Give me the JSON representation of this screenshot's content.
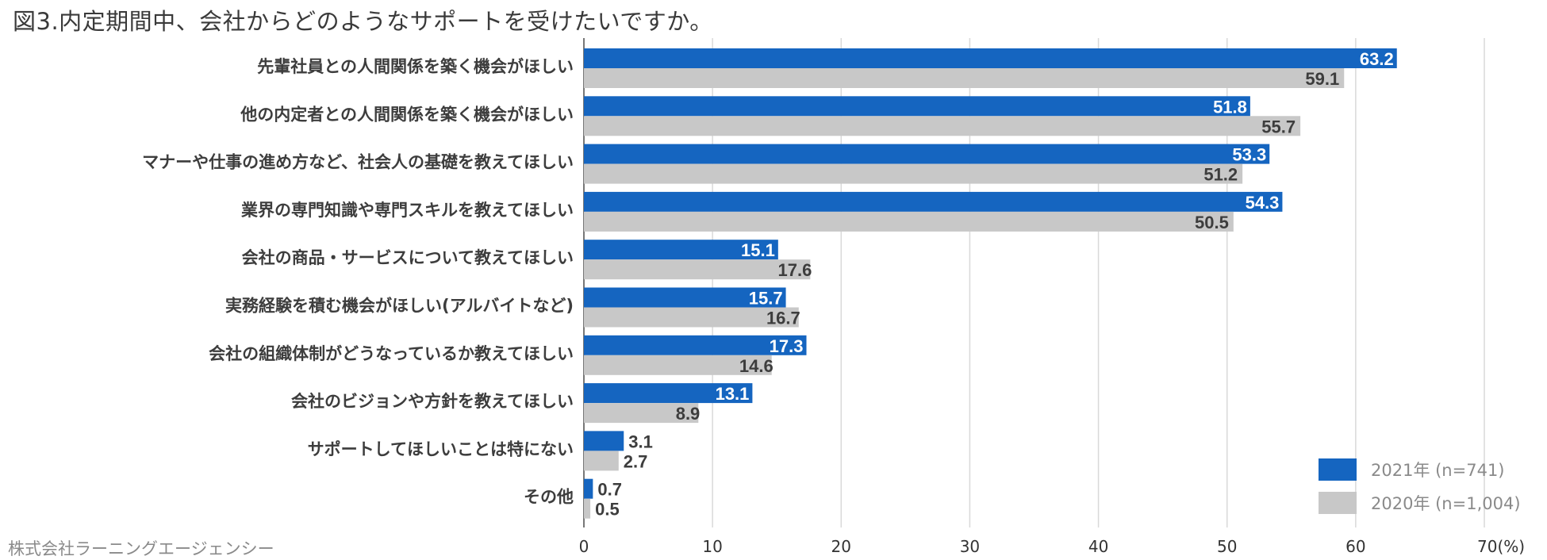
{
  "title": "図3.内定期間中、会社からどのようなサポートを受けたいですか。",
  "credit": "株式会社ラーニングエージェンシー",
  "colors": {
    "series2021": "#1565c0",
    "series2020": "#c8c8c8",
    "grid": "#d9d9d9",
    "axis": "#4a4a4a",
    "label": "#3d3d3d"
  },
  "chart_data": {
    "type": "bar",
    "orientation": "horizontal",
    "title": "図3.内定期間中、会社からどのようなサポートを受けたいですか。",
    "xlabel": "",
    "ylabel": "",
    "xlim": [
      0,
      70
    ],
    "ticks": [
      "0",
      "10",
      "20",
      "30",
      "40",
      "50",
      "60",
      "70(%)"
    ],
    "tick_values": [
      0,
      10,
      20,
      30,
      40,
      50,
      60,
      70
    ],
    "grid": true,
    "legend_position": "bottom-right",
    "categories": [
      "先輩社員との人間関係を築く機会がほしい",
      "他の内定者との人間関係を築く機会がほしい",
      "マナーや仕事の進め方など、社会人の基礎を教えてほしい",
      "業界の専門知識や専門スキルを教えてほしい",
      "会社の商品・サービスについて教えてほしい",
      "実務経験を積む機会がほしい(アルバイトなど)",
      "会社の組織体制がどうなっているか教えてほしい",
      "会社のビジョンや方針を教えてほしい",
      "サポートしてほしいことは特にない",
      "その他"
    ],
    "series": [
      {
        "name": "2021年 (n=741)",
        "values": [
          63.2,
          51.8,
          53.3,
          54.3,
          15.1,
          15.7,
          17.3,
          13.1,
          3.1,
          0.7
        ],
        "labels": [
          "63.2",
          "51.8",
          "53.3",
          "54.3",
          "15.1",
          "15.7",
          "17.3",
          "13.1",
          "3.1",
          "0.7"
        ]
      },
      {
        "name": "2020年 (n=1,004)",
        "values": [
          59.1,
          55.7,
          51.2,
          50.5,
          17.6,
          16.7,
          14.6,
          8.9,
          2.7,
          0.5
        ],
        "labels": [
          "59.1",
          "55.7",
          "51.2",
          "50.5",
          "17.6",
          "16.7",
          "14.6",
          "8.9",
          "2.7",
          "0.5"
        ]
      }
    ]
  }
}
